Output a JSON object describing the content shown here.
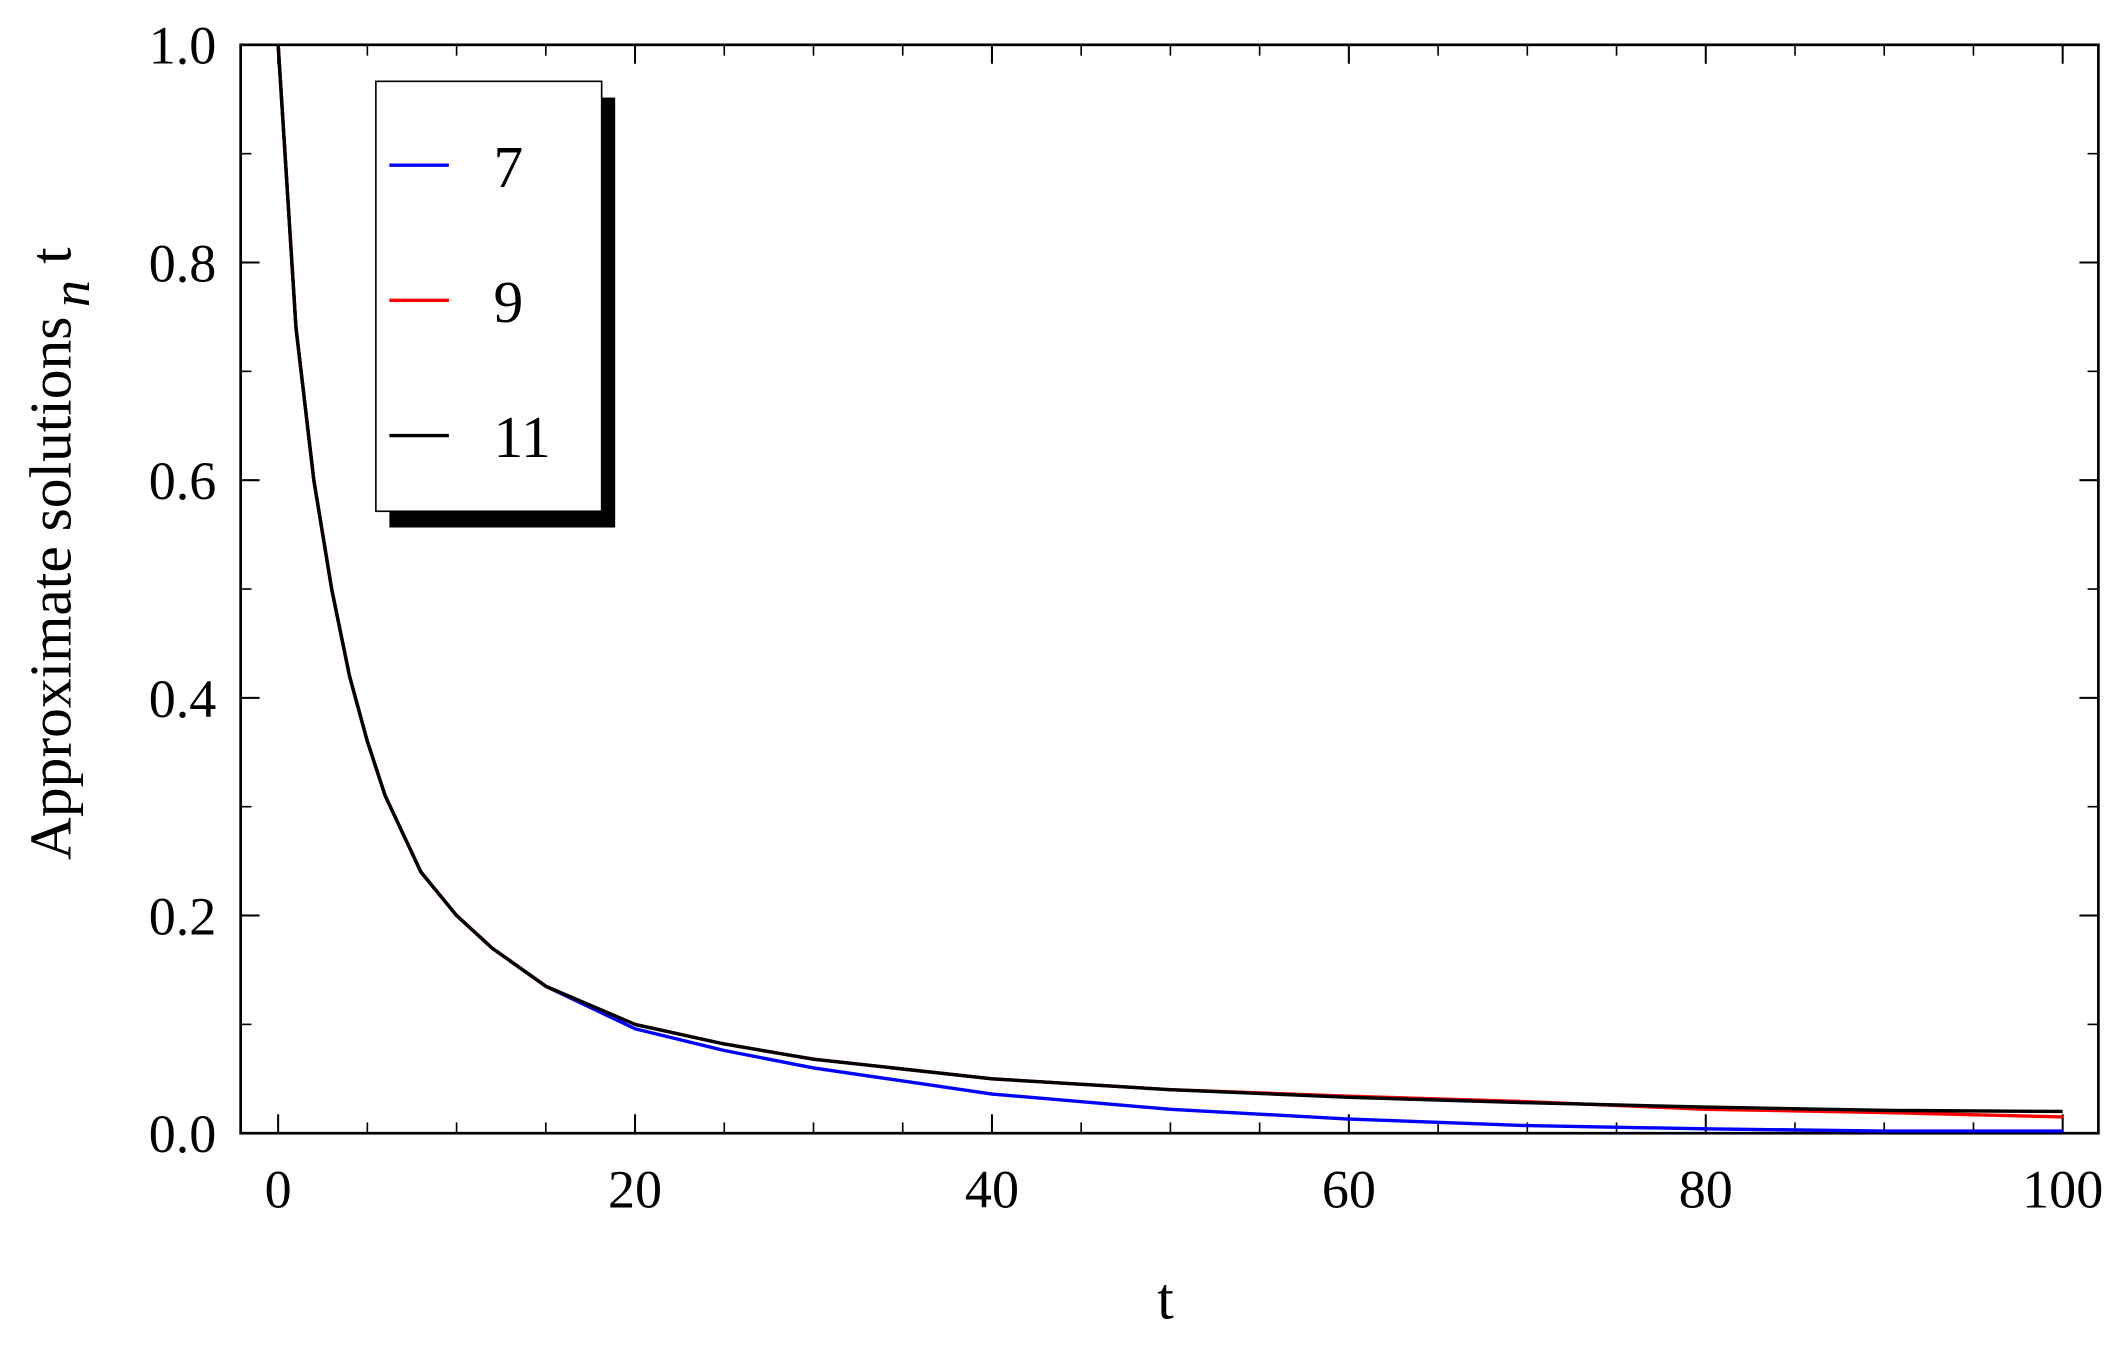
{
  "chart_data": {
    "type": "line",
    "xlabel": "t",
    "ylabel": "Approximate solutions",
    "ylabel_subscript": "n",
    "ylabel_suffix": "t",
    "x": [
      0,
      1,
      2,
      3,
      4,
      5,
      6,
      8,
      10,
      12,
      15,
      20,
      25,
      30,
      40,
      50,
      60,
      70,
      80,
      90,
      100
    ],
    "series": [
      {
        "name": "7",
        "color": "#0000ff",
        "values": [
          1.0,
          0.74,
          0.6,
          0.5,
          0.42,
          0.36,
          0.31,
          0.24,
          0.2,
          0.17,
          0.135,
          0.096,
          0.076,
          0.06,
          0.036,
          0.022,
          0.013,
          0.007,
          0.004,
          0.002,
          0.002
        ]
      },
      {
        "name": "9",
        "color": "#ff0000",
        "values": [
          1.0,
          0.74,
          0.6,
          0.5,
          0.42,
          0.36,
          0.31,
          0.24,
          0.2,
          0.17,
          0.135,
          0.1,
          0.082,
          0.068,
          0.05,
          0.04,
          0.034,
          0.029,
          0.022,
          0.019,
          0.015
        ]
      },
      {
        "name": "11",
        "color": "#000000",
        "values": [
          1.0,
          0.74,
          0.6,
          0.5,
          0.42,
          0.36,
          0.31,
          0.24,
          0.2,
          0.17,
          0.135,
          0.1,
          0.082,
          0.068,
          0.05,
          0.04,
          0.033,
          0.028,
          0.024,
          0.021,
          0.02
        ]
      }
    ],
    "xlim": [
      -2.1,
      102
    ],
    "ylim": [
      0,
      1
    ],
    "xticks": [
      0,
      20,
      40,
      60,
      80,
      100
    ],
    "xminorticks": [
      5,
      10,
      15,
      25,
      30,
      35,
      45,
      50,
      55,
      65,
      70,
      75,
      85,
      90,
      95
    ],
    "yticks": [
      {
        "value": 0,
        "label": "0.0"
      },
      0.2,
      0.4,
      0.6,
      0.8,
      {
        "value": 1,
        "label": "1.0"
      }
    ],
    "yminorticks": [
      0.1,
      0.3,
      0.5,
      0.7,
      0.9
    ],
    "legend": "upper left",
    "grid": false
  }
}
